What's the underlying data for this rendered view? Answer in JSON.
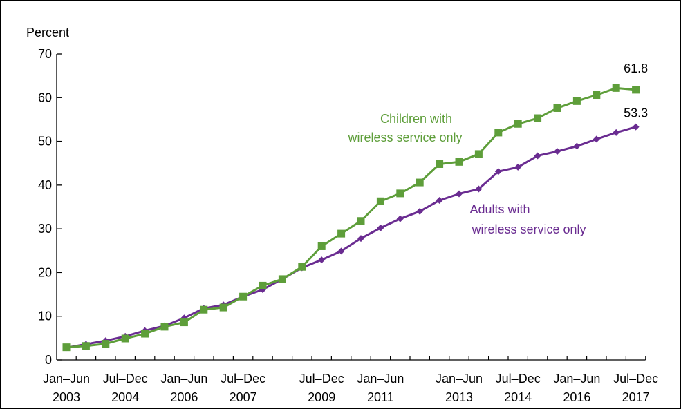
{
  "chart_data": {
    "type": "line",
    "ylabel": "Percent",
    "ylim": [
      0,
      70
    ],
    "yticks": [
      "0",
      "10",
      "20",
      "30",
      "40",
      "50",
      "60",
      "70"
    ],
    "x_tick_labels": [
      {
        "index": 0,
        "line1": "Jan–Jun",
        "line2": "2003"
      },
      {
        "index": 3,
        "line1": "Jul–Dec",
        "line2": "2004"
      },
      {
        "index": 6,
        "line1": "Jan–Jun",
        "line2": "2006"
      },
      {
        "index": 9,
        "line1": "Jul–Dec",
        "line2": "2007"
      },
      {
        "index": 13,
        "line1": "Jul–Dec",
        "line2": "2009"
      },
      {
        "index": 16,
        "line1": "Jan–Jun",
        "line2": "2011"
      },
      {
        "index": 20,
        "line1": "Jan–Jun",
        "line2": "2013"
      },
      {
        "index": 23,
        "line1": "Jul–Dec",
        "line2": "2014"
      },
      {
        "index": 26,
        "line1": "Jan–Jun",
        "line2": "2016"
      },
      {
        "index": 29,
        "line1": "Jul–Dec",
        "line2": "2017"
      }
    ],
    "x": [
      "Jan–Jun 2003",
      "Jul–Dec 2003",
      "Jan–Jun 2004",
      "Jul–Dec 2004",
      "Jan–Jun 2005",
      "Jul–Dec 2005",
      "Jan–Jun 2006",
      "Jul–Dec 2006",
      "Jan–Jun 2007",
      "Jul–Dec 2007",
      "Jan–Jun 2008",
      "Jul–Dec 2008",
      "Jan–Jun 2009",
      "Jul–Dec 2009",
      "Jan–Jun 2010",
      "Jul–Dec 2010",
      "Jan–Jun 2011",
      "Jul–Dec 2011",
      "Jan–Jun 2012",
      "Jul–Dec 2012",
      "Jan–Jun 2013",
      "Jul–Dec 2013",
      "Jan–Jun 2014",
      "Jul–Dec 2014",
      "Jan–Jun 2015",
      "Jul–Dec 2015",
      "Jan–Jun 2016",
      "Jul–Dec 2016",
      "Jan–Jun 2017",
      "Jul–Dec 2017"
    ],
    "series": [
      {
        "name": "Children with wireless service only",
        "label_lines": [
          "Children with",
          "wireless service only"
        ],
        "color": "#5e9e3a",
        "marker": "square",
        "end_label": "61.8",
        "values": [
          2.9,
          3.2,
          3.7,
          4.9,
          6.0,
          7.6,
          8.6,
          11.5,
          12.0,
          14.5,
          17.0,
          18.5,
          21.3,
          26.0,
          28.9,
          31.8,
          36.3,
          38.1,
          40.6,
          44.8,
          45.3,
          47.1,
          52.0,
          54.0,
          55.3,
          57.6,
          59.2,
          60.6,
          62.2,
          61.8
        ]
      },
      {
        "name": "Adults with wireless service only",
        "label_lines": [
          "Adults with",
          "wireless service only"
        ],
        "color": "#6a2c91",
        "marker": "diamond",
        "end_label": "53.3",
        "values": [
          2.8,
          3.6,
          4.4,
          5.4,
          6.7,
          7.8,
          9.6,
          11.8,
          12.6,
          14.5,
          16.1,
          18.5,
          21.1,
          22.9,
          24.9,
          27.8,
          30.2,
          32.3,
          34.0,
          36.5,
          38.0,
          39.1,
          43.1,
          44.1,
          46.7,
          47.7,
          48.9,
          50.5,
          52.0,
          53.3
        ]
      }
    ]
  }
}
